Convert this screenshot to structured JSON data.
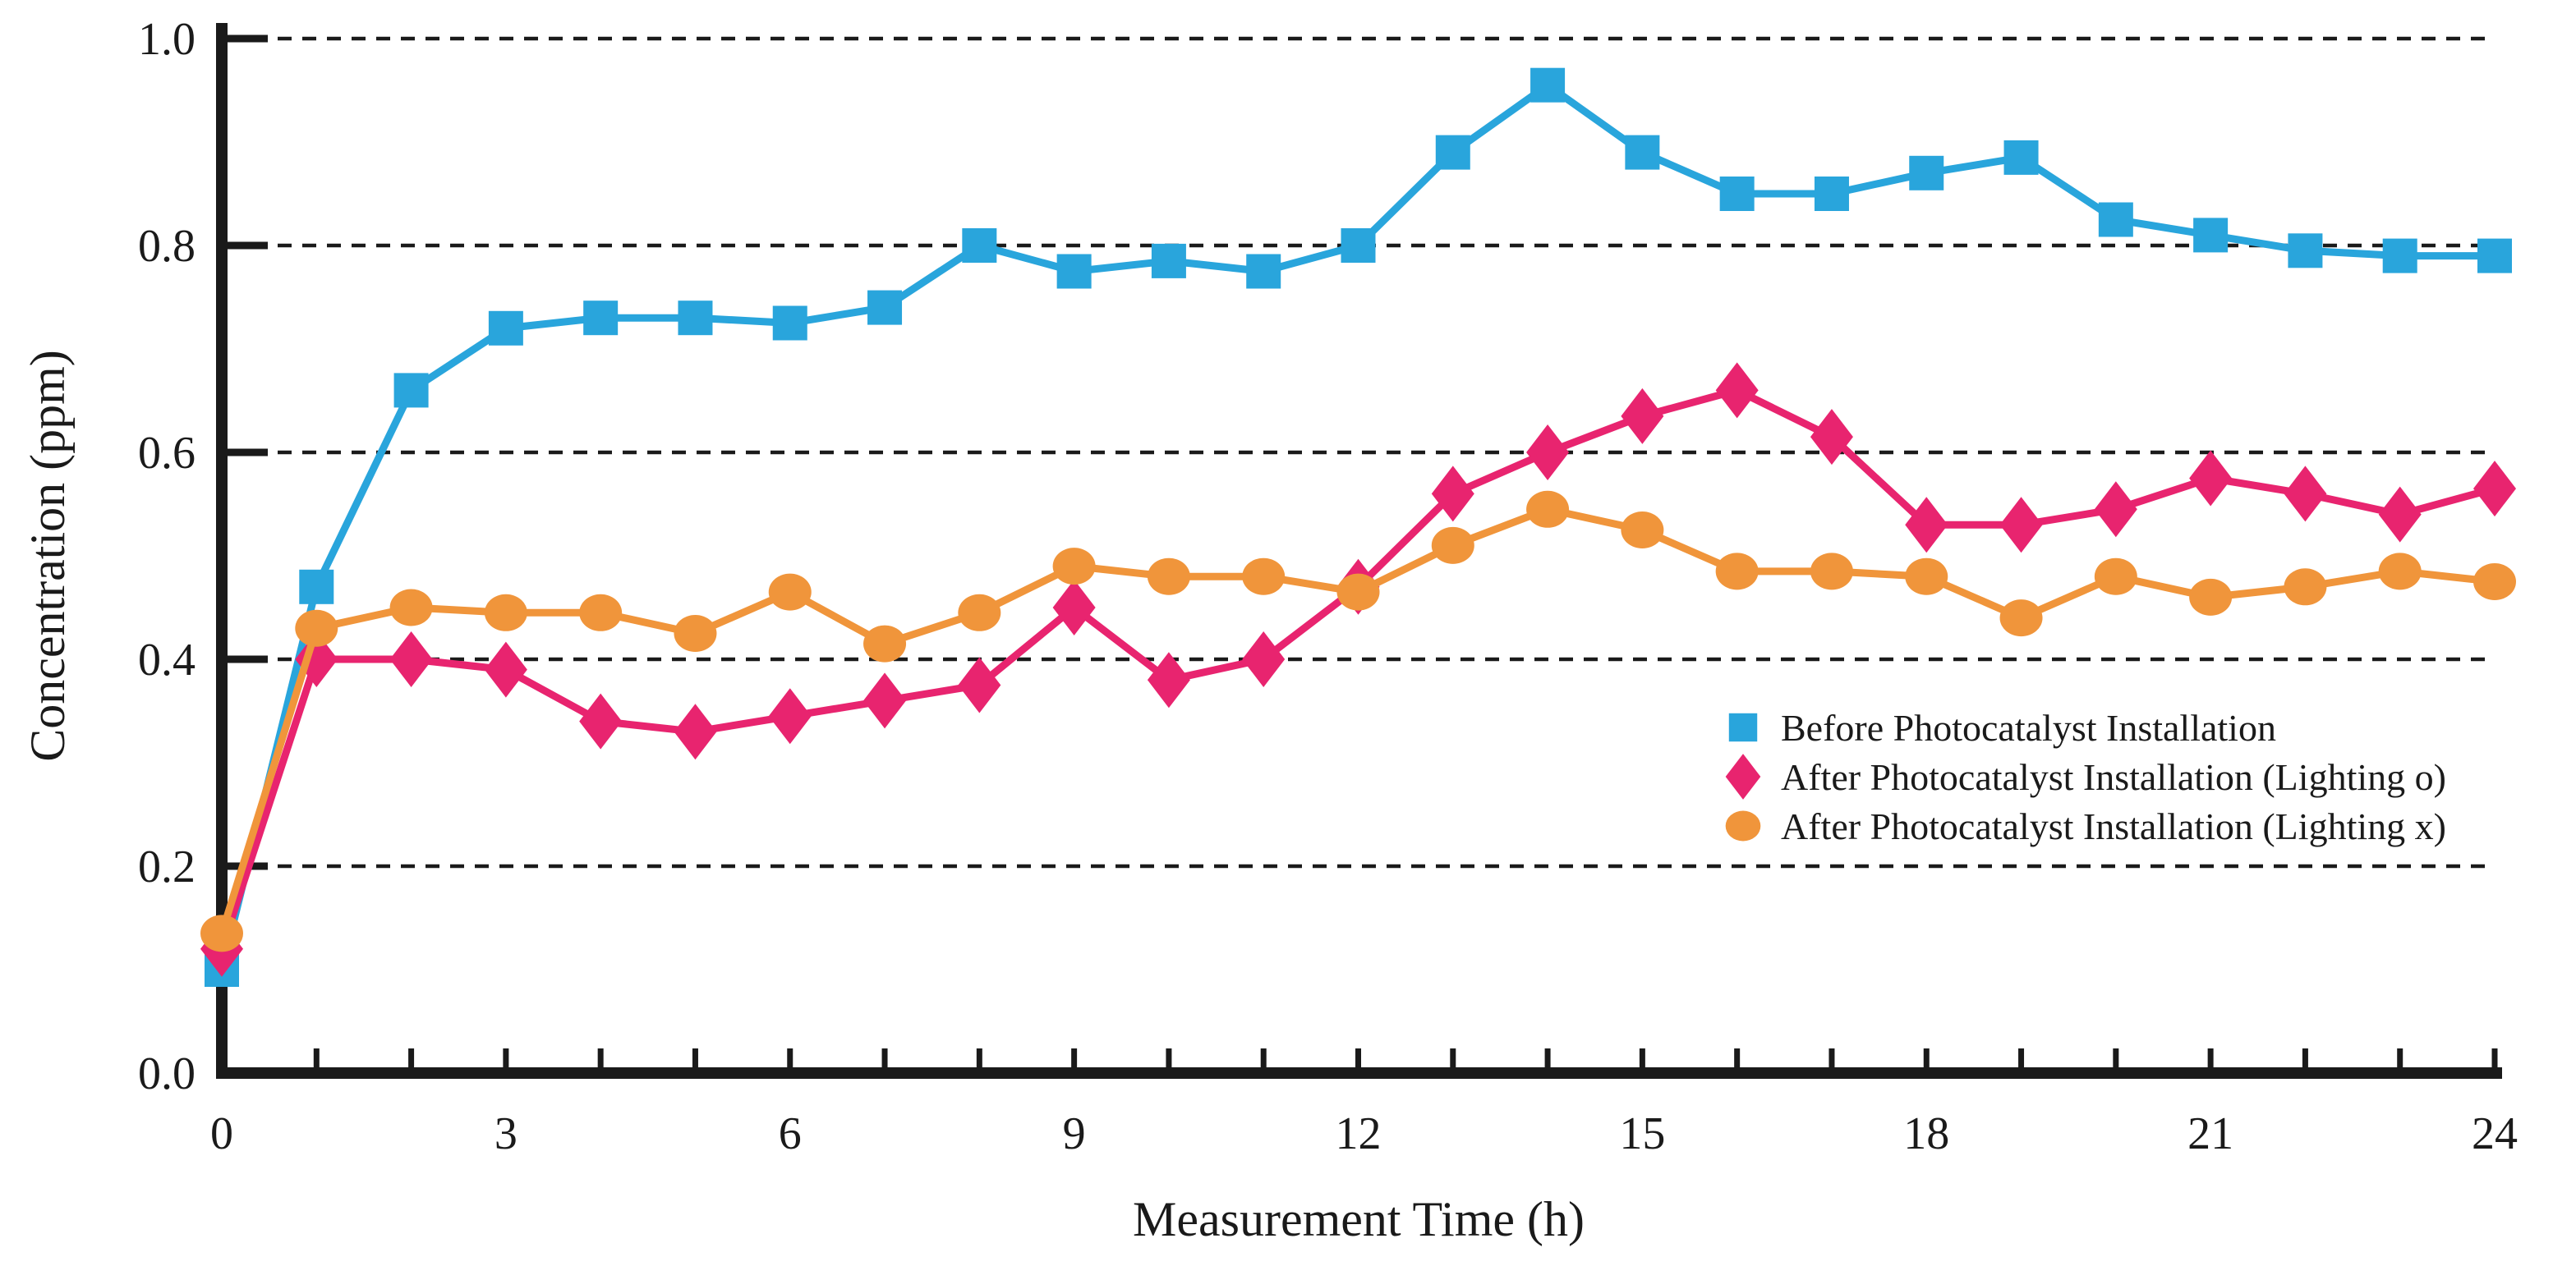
{
  "chart_data": {
    "type": "line",
    "title": "",
    "xlabel": "Measurement Time (h)",
    "ylabel": "Concentration (ppm)",
    "x": [
      0,
      1,
      2,
      3,
      4,
      5,
      6,
      7,
      8,
      9,
      10,
      11,
      12,
      13,
      14,
      15,
      16,
      17,
      18,
      19,
      20,
      21,
      22,
      23,
      24
    ],
    "xlim": [
      0,
      24
    ],
    "ylim": [
      0.0,
      1.0
    ],
    "x_tick_labels": [
      "0",
      "3",
      "6",
      "9",
      "12",
      "15",
      "18",
      "21",
      "24"
    ],
    "x_tick_label_values": [
      0,
      3,
      6,
      9,
      12,
      15,
      18,
      21,
      24
    ],
    "x_minor_tick_every": 1,
    "y_ticks": [
      0.0,
      0.2,
      0.4,
      0.6,
      0.8,
      1.0
    ],
    "y_tick_labels": [
      "0.0",
      "0.2",
      "0.4",
      "0.6",
      "0.8",
      "1.0"
    ],
    "grid": "horizontal dashed black lines at every 0.2",
    "legend_position": "inside right-middle",
    "axis_color": "#1a1a1a",
    "series": [
      {
        "name": "Before Photocatalyst Installation",
        "marker": "square",
        "color": "#29A5DC",
        "values": [
          0.1,
          0.47,
          0.66,
          0.72,
          0.73,
          0.73,
          0.725,
          0.74,
          0.8,
          0.775,
          0.785,
          0.775,
          0.8,
          0.89,
          0.955,
          0.89,
          0.85,
          0.85,
          0.87,
          0.885,
          0.825,
          0.81,
          0.795,
          0.79,
          0.79
        ]
      },
      {
        "name": "After Photocatalyst Installation (Lighting o)",
        "marker": "diamond",
        "color": "#E8246F",
        "values": [
          0.12,
          0.4,
          0.4,
          0.39,
          0.34,
          0.33,
          0.345,
          0.36,
          0.375,
          0.45,
          0.38,
          0.4,
          0.47,
          0.56,
          0.6,
          0.635,
          0.66,
          0.615,
          0.53,
          0.53,
          0.545,
          0.575,
          0.56,
          0.54,
          0.565
        ]
      },
      {
        "name": "After Photocatalyst Installation (Lighting x)",
        "marker": "circle",
        "color": "#F0953B",
        "values": [
          0.135,
          0.43,
          0.45,
          0.445,
          0.445,
          0.425,
          0.465,
          0.415,
          0.445,
          0.49,
          0.48,
          0.48,
          0.465,
          0.51,
          0.545,
          0.525,
          0.485,
          0.485,
          0.48,
          0.44,
          0.48,
          0.46,
          0.47,
          0.485,
          0.475
        ]
      }
    ]
  }
}
